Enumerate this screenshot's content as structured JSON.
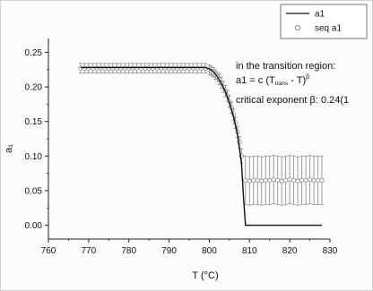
{
  "chart_data": {
    "type": "line",
    "xlabel": "T (°C)",
    "ylabel": "a₁",
    "xlim": [
      760,
      830
    ],
    "ylim": [
      -0.02,
      0.27
    ],
    "xticks": [
      "760",
      "770",
      "780",
      "790",
      "800",
      "810",
      "820",
      "830"
    ],
    "yticks": [
      "0.00",
      "0.05",
      "0.10",
      "0.15",
      "0.20",
      "0.25"
    ],
    "grid": false,
    "legend_position": "top-right",
    "series": [
      {
        "name": "a1",
        "style": "line",
        "color": "#111111",
        "x": [
          768,
          775,
          785,
          795,
          799,
          800,
          801,
          802,
          803,
          804,
          805,
          806,
          807,
          808,
          808.5,
          809,
          811,
          815,
          820,
          828
        ],
        "y": [
          0.228,
          0.228,
          0.228,
          0.228,
          0.228,
          0.226,
          0.222,
          0.215,
          0.205,
          0.193,
          0.177,
          0.158,
          0.132,
          0.09,
          0.04,
          0.0,
          0.0,
          0.0,
          0.0,
          0.0
        ]
      },
      {
        "name": "seq a1",
        "style": "marker-open-circle-errorbar",
        "color": "#888888",
        "x": [
          768,
          769,
          770,
          771,
          772,
          773,
          774,
          775,
          776,
          777,
          778,
          779,
          780,
          781,
          782,
          783,
          784,
          785,
          786,
          787,
          788,
          789,
          790,
          791,
          792,
          793,
          794,
          795,
          796,
          797,
          798,
          799,
          800,
          800.5,
          801,
          801.5,
          802,
          802.5,
          803,
          803.5,
          804,
          804.5,
          805,
          805.5,
          806,
          806.5,
          807,
          807.5,
          808,
          809,
          810,
          811,
          812,
          813,
          814,
          815,
          816,
          817,
          818,
          819,
          820,
          821,
          822,
          823,
          824,
          825,
          826,
          827,
          828
        ],
        "y": [
          0.227,
          0.227,
          0.227,
          0.227,
          0.227,
          0.227,
          0.227,
          0.227,
          0.227,
          0.227,
          0.227,
          0.227,
          0.227,
          0.227,
          0.227,
          0.227,
          0.227,
          0.227,
          0.227,
          0.227,
          0.227,
          0.227,
          0.227,
          0.227,
          0.227,
          0.227,
          0.227,
          0.227,
          0.227,
          0.227,
          0.227,
          0.227,
          0.225,
          0.223,
          0.221,
          0.218,
          0.215,
          0.211,
          0.206,
          0.2,
          0.194,
          0.187,
          0.179,
          0.17,
          0.16,
          0.148,
          0.135,
          0.12,
          0.1,
          0.065,
          0.064,
          0.065,
          0.065,
          0.064,
          0.065,
          0.065,
          0.066,
          0.065,
          0.064,
          0.065,
          0.066,
          0.065,
          0.064,
          0.065,
          0.065,
          0.066,
          0.065,
          0.065,
          0.065
        ],
        "err": [
          0.007,
          0.007,
          0.007,
          0.007,
          0.007,
          0.007,
          0.007,
          0.007,
          0.007,
          0.007,
          0.007,
          0.007,
          0.007,
          0.007,
          0.007,
          0.007,
          0.007,
          0.007,
          0.007,
          0.007,
          0.007,
          0.007,
          0.007,
          0.007,
          0.007,
          0.007,
          0.007,
          0.007,
          0.007,
          0.007,
          0.007,
          0.007,
          0.007,
          0.007,
          0.007,
          0.007,
          0.007,
          0.008,
          0.008,
          0.008,
          0.008,
          0.008,
          0.008,
          0.008,
          0.008,
          0.008,
          0.008,
          0.008,
          0.01,
          0.035,
          0.035,
          0.035,
          0.035,
          0.035,
          0.035,
          0.035,
          0.035,
          0.035,
          0.035,
          0.035,
          0.035,
          0.035,
          0.035,
          0.035,
          0.035,
          0.035,
          0.035,
          0.035,
          0.035
        ]
      }
    ],
    "annotations": [
      "in the transition region:",
      "a1 = c (T",
      "trans",
      " - T)",
      "β",
      "critical exponent β: 0.24(1"
    ]
  },
  "legend": {
    "line_label": "a1",
    "marker_label": "seq a1"
  }
}
